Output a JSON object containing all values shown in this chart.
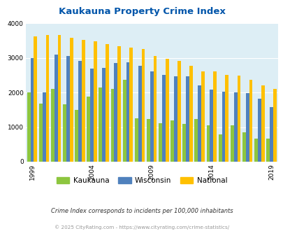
{
  "title": "Kaukauna Property Crime Index",
  "title_color": "#0055aa",
  "years": [
    1999,
    2000,
    2001,
    2002,
    2003,
    2004,
    2005,
    2006,
    2007,
    2008,
    2009,
    2010,
    2011,
    2012,
    2013,
    2014,
    2015,
    2016,
    2017,
    2018,
    2019
  ],
  "kaukauna": [
    2010,
    1680,
    2110,
    1660,
    1490,
    1880,
    2150,
    2110,
    2370,
    1250,
    1240,
    1110,
    1200,
    1090,
    1230,
    1060,
    790,
    1060,
    855,
    660,
    660
  ],
  "wisconsin": [
    3000,
    2000,
    3100,
    3050,
    2900,
    2680,
    2700,
    2850,
    2870,
    2760,
    2610,
    2510,
    2470,
    2470,
    2210,
    2090,
    2020,
    2010,
    1970,
    1820,
    1570
  ],
  "national": [
    3620,
    3660,
    3650,
    3580,
    3520,
    3470,
    3400,
    3340,
    3290,
    3250,
    3060,
    2960,
    2910,
    2760,
    2610,
    2600,
    2500,
    2480,
    2360,
    2210,
    2100
  ],
  "kaukauna_color": "#8dc63f",
  "wisconsin_color": "#4f81bd",
  "national_color": "#ffc000",
  "bg_color": "#ddeef5",
  "fig_bg": "#ffffff",
  "ylim": [
    0,
    4000
  ],
  "yticks": [
    0,
    1000,
    2000,
    3000,
    4000
  ],
  "xtick_years": [
    1999,
    2004,
    2009,
    2014,
    2019
  ],
  "footnote1": "Crime Index corresponds to incidents per 100,000 inhabitants",
  "footnote2": "© 2025 CityRating.com - https://www.cityrating.com/crime-statistics/",
  "legend_labels": [
    "Kaukauna",
    "Wisconsin",
    "National"
  ]
}
